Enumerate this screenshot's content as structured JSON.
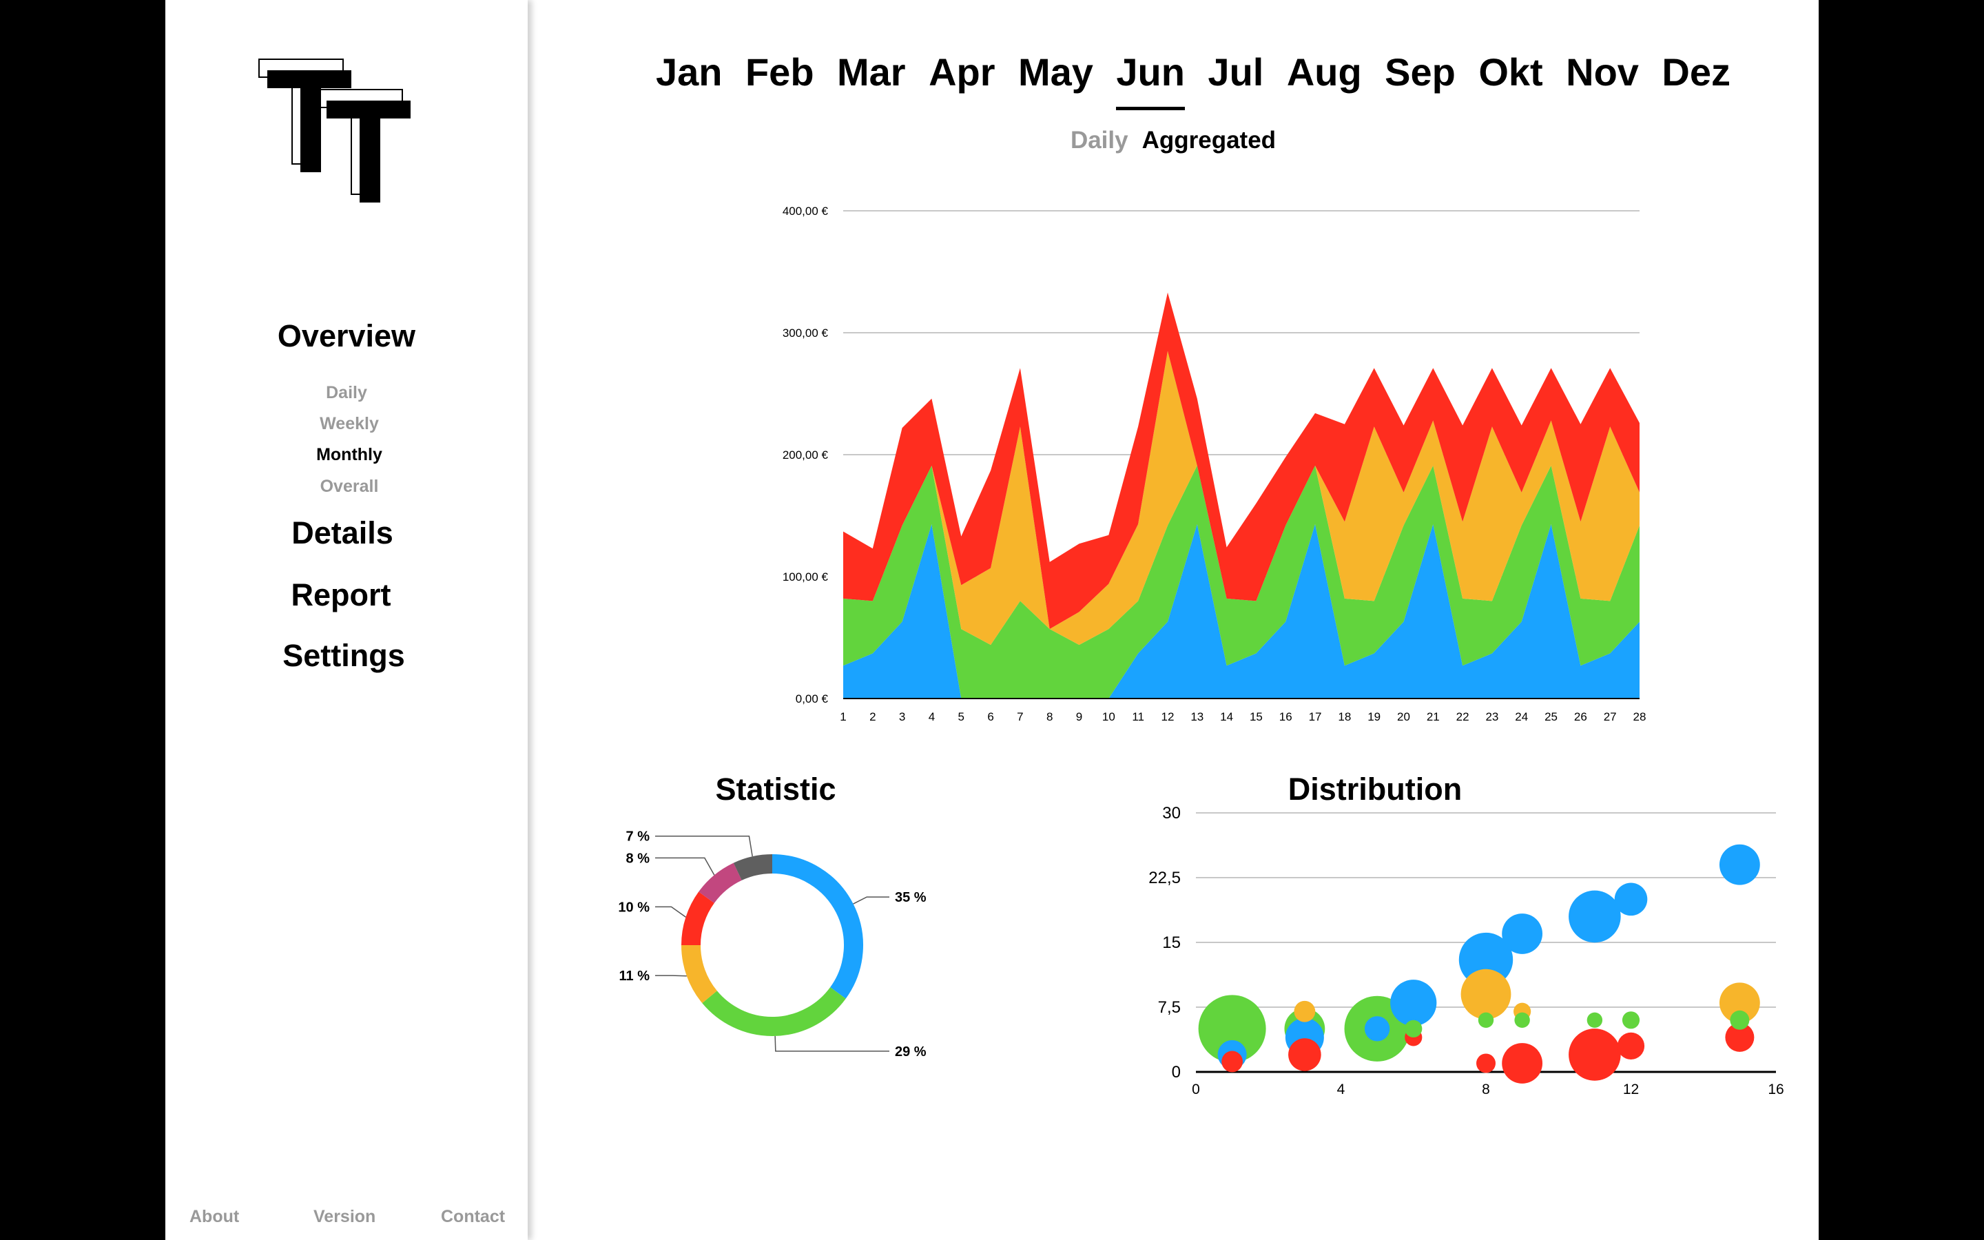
{
  "sidebar": {
    "logo_text": "TT",
    "nav": {
      "overview": "Overview",
      "daily": "Daily",
      "weekly": "Weekly",
      "monthly": "Monthly",
      "overall": "Overall",
      "details": "Details",
      "report": "Report",
      "settings": "Settings"
    },
    "footer": {
      "about": "About",
      "version": "Version",
      "contact": "Contact"
    }
  },
  "months": [
    "Jan",
    "Feb",
    "Mar",
    "Apr",
    "May",
    "Jun",
    "Jul",
    "Aug",
    "Sep",
    "Okt",
    "Nov",
    "Dez"
  ],
  "active_month": "Jun",
  "view_toggle": {
    "daily": "Daily",
    "aggregated": "Aggregated",
    "active": "Aggregated"
  },
  "statistic": {
    "title": "Statistic"
  },
  "distribution": {
    "title": "Distribution"
  },
  "chart_data": [
    {
      "type": "area",
      "stacked": true,
      "x": [
        1,
        2,
        3,
        4,
        5,
        6,
        7,
        8,
        9,
        10,
        11,
        12,
        13,
        14,
        15,
        16,
        17,
        18,
        19,
        20,
        21,
        22,
        23,
        24,
        25,
        26,
        27,
        28
      ],
      "y_ticks": [
        "0,00 €",
        "100,00 €",
        "200,00 €",
        "300,00 €",
        "400,00 €"
      ],
      "ylim": [
        0,
        400
      ],
      "grid": true,
      "series": [
        {
          "color": "#1aa3ff",
          "values": [
            27,
            37,
            63,
            143,
            0,
            0,
            0,
            0,
            0,
            0,
            37,
            63,
            143,
            27,
            37,
            63,
            143,
            27,
            37,
            63,
            143,
            27,
            37,
            63,
            143,
            27,
            37,
            63
          ]
        },
        {
          "color": "#62d43d",
          "values": [
            55,
            43,
            79,
            48,
            57,
            44,
            80,
            57,
            44,
            57,
            43,
            79,
            48,
            55,
            43,
            79,
            48,
            55,
            43,
            79,
            48,
            55,
            43,
            79,
            48,
            55,
            43,
            79
          ]
        },
        {
          "color": "#f7b52b",
          "values": [
            0,
            0,
            0,
            0,
            36,
            63,
            143,
            0,
            27,
            37,
            63,
            143,
            0,
            0,
            0,
            0,
            0,
            63,
            143,
            27,
            37,
            63,
            143,
            27,
            37,
            63,
            143,
            27
          ]
        },
        {
          "color": "#ff2d1f",
          "values": [
            55,
            43,
            80,
            55,
            40,
            80,
            48,
            55,
            56,
            40,
            80,
            48,
            55,
            42,
            80,
            56,
            43,
            80,
            48,
            55,
            43,
            79,
            48,
            55,
            43,
            80,
            48,
            57
          ]
        }
      ]
    },
    {
      "type": "pie",
      "donut": true,
      "slices": [
        {
          "label": "35 %",
          "value": 35,
          "color": "#1aa3ff"
        },
        {
          "label": "29 %",
          "value": 29,
          "color": "#62d43d"
        },
        {
          "label": "11 %",
          "value": 11,
          "color": "#f7b52b"
        },
        {
          "label": "10 %",
          "value": 10,
          "color": "#ff2d1f"
        },
        {
          "label": "8 %",
          "value": 8,
          "color": "#c2477f"
        },
        {
          "label": "7 %",
          "value": 7,
          "color": "#5f5f5f"
        }
      ]
    },
    {
      "type": "scatter",
      "bubble": true,
      "xlim": [
        0,
        16
      ],
      "ylim": [
        0,
        30
      ],
      "x_ticks": [
        "0",
        "4",
        "8",
        "12",
        "16"
      ],
      "y_ticks": [
        "0",
        "7,5",
        "15",
        "22,5",
        "30"
      ],
      "grid": true,
      "points": [
        {
          "x": 1,
          "y": 5,
          "size": 3.0,
          "color": "#62d43d"
        },
        {
          "x": 1,
          "y": 1.2,
          "size": 0.6,
          "color": "#ff2d1f"
        },
        {
          "x": 1,
          "y": 2,
          "size": 1.0,
          "color": "#1aa3ff"
        },
        {
          "x": 3,
          "y": 2,
          "size": 1.2,
          "color": "#ff2d1f"
        },
        {
          "x": 3,
          "y": 7,
          "size": 0.6,
          "color": "#f7b52b"
        },
        {
          "x": 3,
          "y": 5,
          "size": 1.6,
          "color": "#62d43d"
        },
        {
          "x": 3,
          "y": 4,
          "size": 1.5,
          "color": "#1aa3ff"
        },
        {
          "x": 5,
          "y": 5,
          "size": 2.9,
          "color": "#62d43d"
        },
        {
          "x": 5,
          "y": 5,
          "size": 0.8,
          "color": "#1aa3ff"
        },
        {
          "x": 6,
          "y": 4,
          "size": 0.4,
          "color": "#ff2d1f"
        },
        {
          "x": 6,
          "y": 5,
          "size": 0.4,
          "color": "#62d43d"
        },
        {
          "x": 6,
          "y": 8,
          "size": 1.9,
          "color": "#1aa3ff"
        },
        {
          "x": 8,
          "y": 1,
          "size": 0.5,
          "color": "#ff2d1f"
        },
        {
          "x": 8,
          "y": 6,
          "size": 0.3,
          "color": "#62d43d"
        },
        {
          "x": 8,
          "y": 9,
          "size": 2.1,
          "color": "#f7b52b"
        },
        {
          "x": 8,
          "y": 13,
          "size": 2.3,
          "color": "#1aa3ff"
        },
        {
          "x": 9,
          "y": 1,
          "size": 1.6,
          "color": "#ff2d1f"
        },
        {
          "x": 9,
          "y": 6,
          "size": 0.3,
          "color": "#62d43d"
        },
        {
          "x": 9,
          "y": 7,
          "size": 0.4,
          "color": "#f7b52b"
        },
        {
          "x": 9,
          "y": 16,
          "size": 1.6,
          "color": "#1aa3ff"
        },
        {
          "x": 11,
          "y": 2,
          "size": 2.2,
          "color": "#ff2d1f"
        },
        {
          "x": 11,
          "y": 6,
          "size": 0.3,
          "color": "#62d43d"
        },
        {
          "x": 11,
          "y": 18,
          "size": 2.2,
          "color": "#1aa3ff"
        },
        {
          "x": 12,
          "y": 3,
          "size": 0.9,
          "color": "#ff2d1f"
        },
        {
          "x": 12,
          "y": 6,
          "size": 0.4,
          "color": "#62d43d"
        },
        {
          "x": 12,
          "y": 20,
          "size": 1.2,
          "color": "#1aa3ff"
        },
        {
          "x": 15,
          "y": 4,
          "size": 1.0,
          "color": "#ff2d1f"
        },
        {
          "x": 15,
          "y": 6,
          "size": 0.5,
          "color": "#62d43d"
        },
        {
          "x": 15,
          "y": 8,
          "size": 1.6,
          "color": "#f7b52b"
        },
        {
          "x": 15,
          "y": 24,
          "size": 1.6,
          "color": "#1aa3ff"
        }
      ]
    }
  ]
}
